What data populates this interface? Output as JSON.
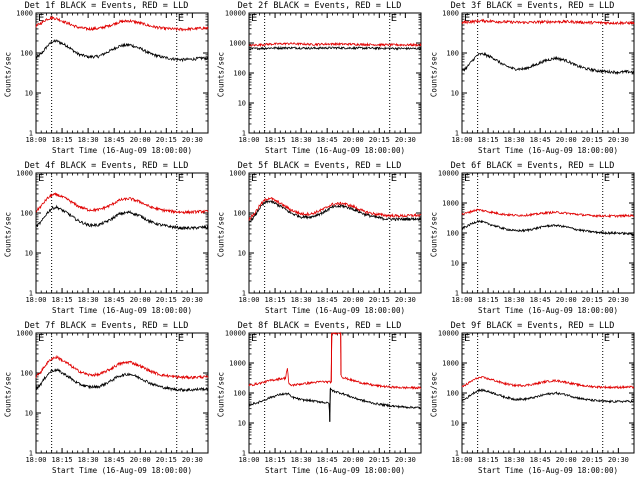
{
  "colors": {
    "events": "#000000",
    "lld": "#e00000",
    "background": "#ffffff"
  },
  "x_ticks": [
    "18:00",
    "18:15",
    "18:30",
    "18:45",
    "20:00",
    "20:15",
    "20:30"
  ],
  "x_label": "Start Time (16-Aug-09 18:00:00)",
  "y_label": "Counts/sec",
  "vertical_markers": {
    "at": [
      15,
      135
    ],
    "label": "E"
  },
  "chart_data": [
    {
      "type": "line",
      "title": "Det 1f BLACK = Events, RED = LLD",
      "xlabel": "Start Time (16-Aug-09 18:00:00)",
      "ylabel": "Counts/sec",
      "yscale": "log",
      "ylim": [
        1,
        1000
      ],
      "y_ticks": [
        1,
        10,
        100,
        1000
      ],
      "xlim": [
        0,
        165
      ],
      "series": [
        {
          "name": "Events",
          "color": "#000000",
          "x": [
            0,
            5,
            10,
            15,
            20,
            30,
            40,
            50,
            60,
            70,
            80,
            90,
            100,
            110,
            120,
            130,
            140,
            150,
            160,
            165
          ],
          "values": [
            75,
            95,
            140,
            190,
            200,
            150,
            95,
            80,
            82,
            110,
            150,
            160,
            130,
            95,
            80,
            72,
            68,
            70,
            75,
            72
          ]
        },
        {
          "name": "LLD",
          "color": "#e00000",
          "x": [
            0,
            5,
            10,
            15,
            20,
            30,
            40,
            50,
            60,
            70,
            80,
            90,
            100,
            110,
            120,
            130,
            140,
            150,
            160,
            165
          ],
          "values": [
            470,
            560,
            700,
            760,
            720,
            560,
            440,
            400,
            410,
            480,
            600,
            640,
            560,
            470,
            420,
            400,
            390,
            400,
            420,
            410
          ]
        }
      ]
    },
    {
      "type": "line",
      "title": "Det 2f BLACK = Events, RED = LLD",
      "xlabel": "Start Time (16-Aug-09 18:00:00)",
      "ylabel": "Counts/sec",
      "yscale": "log",
      "ylim": [
        1,
        10000
      ],
      "y_ticks": [
        1,
        10,
        100,
        1000,
        10000
      ],
      "xlim": [
        0,
        165
      ],
      "series": [
        {
          "name": "Events",
          "color": "#000000",
          "x": [
            0,
            20,
            40,
            60,
            80,
            100,
            120,
            140,
            165
          ],
          "values": [
            640,
            680,
            690,
            670,
            690,
            680,
            670,
            660,
            650
          ]
        },
        {
          "name": "LLD",
          "color": "#e00000",
          "x": [
            0,
            20,
            40,
            60,
            80,
            100,
            120,
            140,
            165
          ],
          "values": [
            820,
            920,
            960,
            900,
            930,
            910,
            880,
            870,
            860
          ]
        }
      ]
    },
    {
      "type": "line",
      "title": "Det 3f BLACK = Events, RED = LLD",
      "xlabel": "Start Time (16-Aug-09 18:00:00)",
      "ylabel": "Counts/sec",
      "yscale": "log",
      "ylim": [
        1,
        1000
      ],
      "y_ticks": [
        1,
        10,
        100,
        1000
      ],
      "xlim": [
        0,
        165
      ],
      "series": [
        {
          "name": "Events",
          "color": "#000000",
          "x": [
            0,
            5,
            10,
            15,
            20,
            30,
            40,
            50,
            60,
            70,
            80,
            90,
            100,
            110,
            120,
            130,
            140,
            150,
            160,
            165
          ],
          "values": [
            35,
            45,
            65,
            90,
            95,
            75,
            50,
            40,
            40,
            50,
            65,
            75,
            65,
            48,
            40,
            36,
            34,
            33,
            34,
            33
          ]
        },
        {
          "name": "LLD",
          "color": "#e00000",
          "x": [
            0,
            20,
            40,
            60,
            80,
            100,
            120,
            140,
            165
          ],
          "values": [
            580,
            640,
            600,
            580,
            600,
            610,
            580,
            570,
            560
          ]
        }
      ]
    },
    {
      "type": "line",
      "title": "Det 4f BLACK = Events, RED = LLD",
      "xlabel": "Start Time (16-Aug-09 18:00:00)",
      "ylabel": "Counts/sec",
      "yscale": "log",
      "ylim": [
        1,
        1000
      ],
      "y_ticks": [
        1,
        10,
        100,
        1000
      ],
      "xlim": [
        0,
        165
      ],
      "series": [
        {
          "name": "Events",
          "color": "#000000",
          "x": [
            0,
            5,
            10,
            15,
            20,
            30,
            40,
            50,
            60,
            70,
            80,
            90,
            100,
            110,
            120,
            130,
            140,
            150,
            160,
            165
          ],
          "values": [
            45,
            60,
            95,
            130,
            140,
            100,
            65,
            50,
            50,
            65,
            95,
            105,
            85,
            60,
            50,
            45,
            42,
            42,
            44,
            43
          ]
        },
        {
          "name": "LLD",
          "color": "#e00000",
          "x": [
            0,
            5,
            10,
            15,
            20,
            30,
            40,
            50,
            60,
            70,
            80,
            90,
            100,
            110,
            120,
            130,
            140,
            150,
            160,
            165
          ],
          "values": [
            110,
            150,
            220,
            280,
            290,
            220,
            150,
            120,
            120,
            150,
            210,
            230,
            190,
            140,
            120,
            110,
            105,
            105,
            110,
            108
          ]
        }
      ]
    },
    {
      "type": "line",
      "title": "Det 5f BLACK = Events, RED = LLD",
      "xlabel": "Start Time (16-Aug-09 18:00:00)",
      "ylabel": "Counts/sec",
      "yscale": "log",
      "ylim": [
        1,
        1000
      ],
      "y_ticks": [
        1,
        10,
        100,
        1000
      ],
      "xlim": [
        0,
        165
      ],
      "series": [
        {
          "name": "Events",
          "color": "#000000",
          "x": [
            0,
            5,
            10,
            15,
            20,
            30,
            40,
            50,
            60,
            70,
            80,
            90,
            100,
            110,
            120,
            130,
            140,
            150,
            160,
            165
          ],
          "values": [
            60,
            80,
            130,
            180,
            200,
            150,
            100,
            80,
            80,
            100,
            140,
            150,
            125,
            95,
            80,
            72,
            70,
            70,
            72,
            70
          ]
        },
        {
          "name": "LLD",
          "color": "#e00000",
          "x": [
            0,
            5,
            10,
            15,
            20,
            30,
            40,
            50,
            60,
            70,
            80,
            90,
            100,
            110,
            120,
            130,
            140,
            150,
            160,
            165
          ],
          "values": [
            70,
            95,
            150,
            210,
            240,
            175,
            120,
            95,
            95,
            120,
            165,
            175,
            145,
            110,
            95,
            88,
            85,
            85,
            88,
            86
          ]
        }
      ]
    },
    {
      "type": "line",
      "title": "Det 6f BLACK = Events, RED = LLD",
      "xlabel": "Start Time (16-Aug-09 18:00:00)",
      "ylabel": "Counts/sec",
      "yscale": "log",
      "ylim": [
        1,
        10000
      ],
      "y_ticks": [
        1,
        10,
        100,
        1000,
        10000
      ],
      "xlim": [
        0,
        165
      ],
      "series": [
        {
          "name": "Events",
          "color": "#000000",
          "x": [
            0,
            5,
            10,
            15,
            20,
            30,
            40,
            50,
            60,
            70,
            80,
            90,
            100,
            110,
            120,
            130,
            140,
            150,
            160,
            165
          ],
          "values": [
            140,
            170,
            210,
            250,
            230,
            180,
            140,
            120,
            120,
            140,
            170,
            180,
            160,
            130,
            115,
            105,
            100,
            100,
            95,
            90
          ]
        },
        {
          "name": "LLD",
          "color": "#e00000",
          "x": [
            0,
            5,
            10,
            15,
            20,
            30,
            40,
            50,
            60,
            70,
            80,
            90,
            100,
            110,
            120,
            130,
            140,
            150,
            160,
            165
          ],
          "values": [
            420,
            470,
            540,
            600,
            560,
            480,
            420,
            390,
            390,
            420,
            470,
            490,
            460,
            420,
            390,
            375,
            370,
            370,
            380,
            375
          ]
        }
      ]
    },
    {
      "type": "line",
      "title": "Det 7f BLACK = Events, RED = LLD",
      "xlabel": "Start Time (16-Aug-09 18:00:00)",
      "ylabel": "Counts/sec",
      "yscale": "log",
      "ylim": [
        1,
        1000
      ],
      "y_ticks": [
        1,
        10,
        100,
        1000
      ],
      "xlim": [
        0,
        165
      ],
      "series": [
        {
          "name": "Events",
          "color": "#000000",
          "x": [
            0,
            5,
            10,
            15,
            20,
            30,
            40,
            50,
            60,
            70,
            80,
            90,
            100,
            110,
            120,
            130,
            140,
            150,
            160,
            165
          ],
          "values": [
            40,
            55,
            85,
            115,
            120,
            85,
            55,
            45,
            45,
            60,
            85,
            95,
            75,
            55,
            45,
            40,
            38,
            38,
            40,
            39
          ]
        },
        {
          "name": "LLD",
          "color": "#e00000",
          "x": [
            0,
            5,
            10,
            15,
            20,
            30,
            40,
            50,
            60,
            70,
            80,
            90,
            100,
            110,
            120,
            130,
            140,
            150,
            160,
            165
          ],
          "values": [
            80,
            110,
            170,
            230,
            250,
            175,
            115,
            90,
            90,
            120,
            170,
            190,
            150,
            110,
            90,
            82,
            78,
            78,
            80,
            79
          ]
        }
      ]
    },
    {
      "type": "line",
      "title": "Det 8f BLACK = Events, RED = LLD",
      "xlabel": "Start Time (16-Aug-09 18:00:00)",
      "ylabel": "Counts/sec",
      "yscale": "log",
      "ylim": [
        1,
        10000
      ],
      "y_ticks": [
        1,
        10,
        100,
        1000,
        10000
      ],
      "xlim": [
        0,
        165
      ],
      "series": [
        {
          "name": "Events",
          "color": "#000000",
          "x": [
            0,
            10,
            20,
            30,
            38,
            40,
            50,
            60,
            70,
            77,
            77.5,
            78,
            80,
            90,
            100,
            110,
            120,
            130,
            140,
            150,
            160,
            165
          ],
          "values": [
            40,
            50,
            70,
            90,
            95,
            75,
            60,
            55,
            50,
            45,
            11,
            140,
            120,
            95,
            70,
            55,
            45,
            40,
            36,
            34,
            33,
            32
          ]
        },
        {
          "name": "LLD",
          "color": "#e00000",
          "x": [
            0,
            10,
            20,
            30,
            35,
            36,
            37,
            38,
            40,
            50,
            60,
            70,
            79,
            79.2,
            88,
            88.2,
            90,
            100,
            110,
            120,
            130,
            140,
            150,
            160,
            165
          ],
          "values": [
            180,
            210,
            260,
            300,
            310,
            500,
            700,
            200,
            180,
            200,
            220,
            240,
            230,
            10000,
            10000,
            400,
            330,
            260,
            210,
            180,
            165,
            155,
            150,
            150,
            148
          ]
        }
      ]
    },
    {
      "type": "line",
      "title": "Det 9f BLACK = Events, RED = LLD",
      "xlabel": "Start Time (16-Aug-09 18:00:00)",
      "ylabel": "Counts/sec",
      "yscale": "log",
      "ylim": [
        1,
        10000
      ],
      "y_ticks": [
        1,
        10,
        100,
        1000,
        10000
      ],
      "xlim": [
        0,
        165
      ],
      "series": [
        {
          "name": "Events",
          "color": "#000000",
          "x": [
            0,
            5,
            10,
            15,
            20,
            30,
            40,
            50,
            60,
            70,
            80,
            90,
            100,
            110,
            120,
            130,
            140,
            150,
            160,
            165
          ],
          "values": [
            55,
            70,
            95,
            120,
            125,
            100,
            75,
            62,
            62,
            72,
            90,
            100,
            88,
            70,
            60,
            55,
            52,
            52,
            53,
            52
          ]
        },
        {
          "name": "LLD",
          "color": "#e00000",
          "x": [
            0,
            5,
            10,
            15,
            20,
            30,
            40,
            50,
            60,
            70,
            80,
            90,
            100,
            110,
            120,
            130,
            140,
            150,
            160,
            165
          ],
          "values": [
            160,
            200,
            260,
            320,
            330,
            270,
            210,
            180,
            180,
            200,
            240,
            260,
            230,
            190,
            170,
            160,
            155,
            155,
            158,
            156
          ]
        }
      ]
    }
  ]
}
